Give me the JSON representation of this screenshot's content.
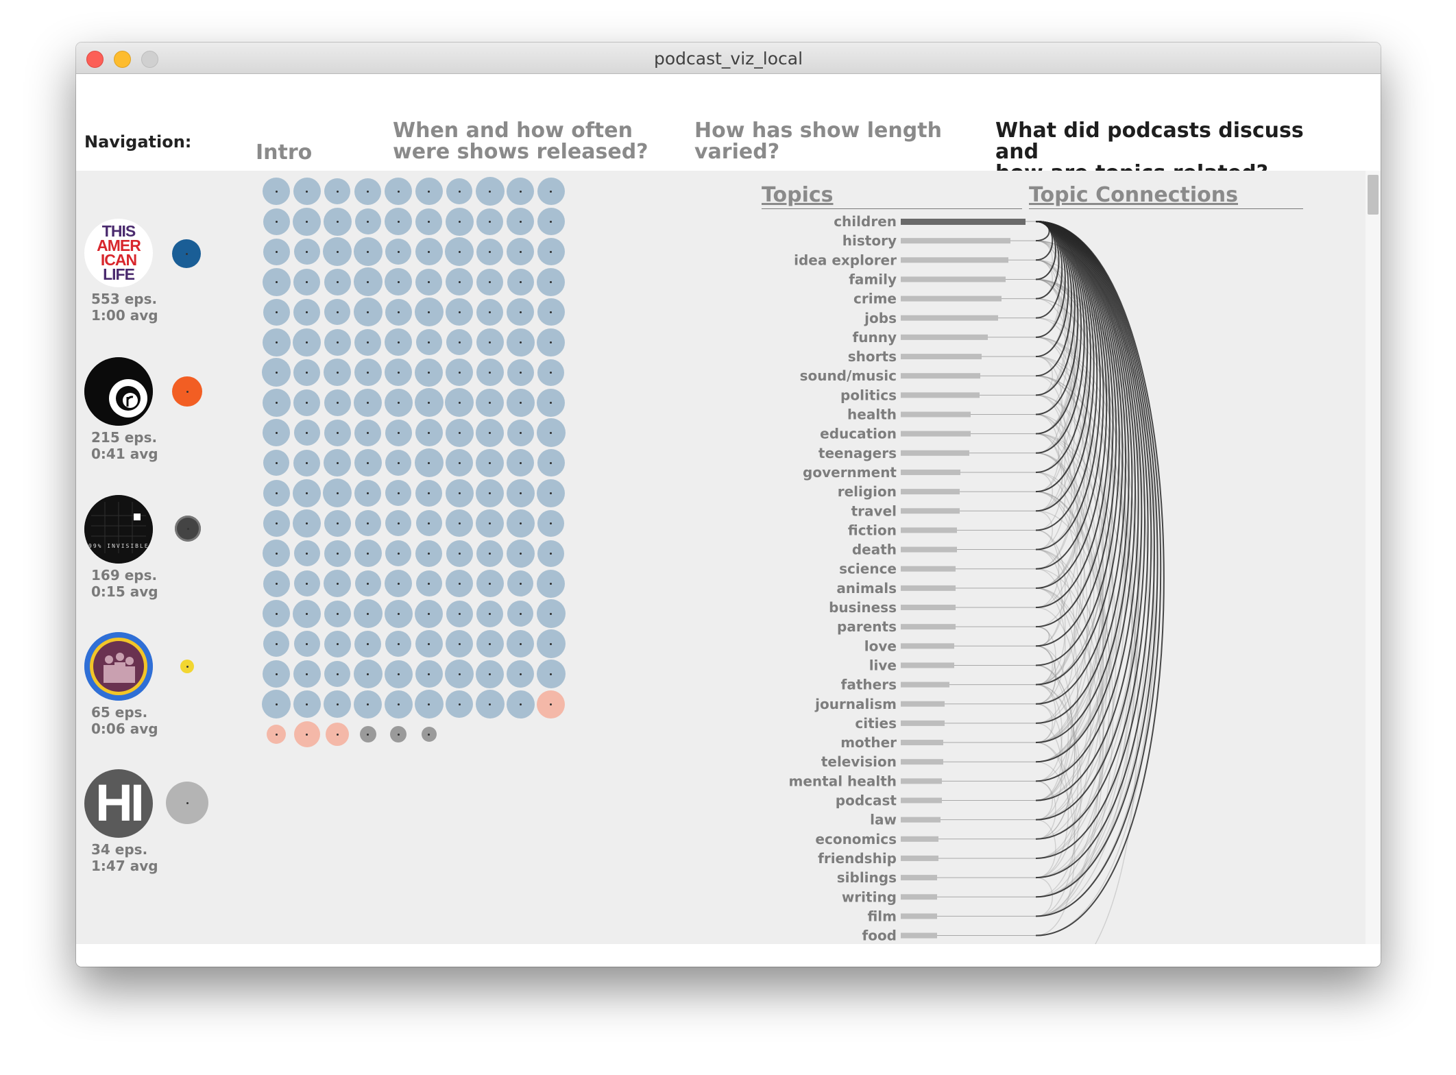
{
  "window": {
    "title": "podcast_viz_local"
  },
  "nav": {
    "label": "Navigation:",
    "items": [
      {
        "lines": [
          "Intro"
        ]
      },
      {
        "lines": [
          "When and how often",
          "were shows released?"
        ]
      },
      {
        "lines": [
          "How has show length",
          "varied?"
        ]
      },
      {
        "lines": [
          "What did podcasts discuss and",
          "how are topics related?"
        ],
        "active": true
      }
    ]
  },
  "podcasts": [
    {
      "logo": "this-american-life-logo",
      "logo_text": [
        "THIS",
        "AMER",
        "ICAN",
        "LIFE"
      ],
      "color": "#1a5e96",
      "eps": "553 eps.",
      "avg": "1:00 avg"
    },
    {
      "logo": "radiolab-logo",
      "color": "#f25e23",
      "eps": "215 eps.",
      "avg": "0:41 avg"
    },
    {
      "logo": "99-percent-invisible-logo",
      "logo_text": [
        "99% INVISIBLE"
      ],
      "color": "#444444",
      "eps": "169 eps.",
      "avg": "0:15 avg"
    },
    {
      "logo": "crowd-photo-logo",
      "color": "#f2d631",
      "eps": "65 eps.",
      "avg": "0:06 avg"
    },
    {
      "logo": "hidden-brain-logo",
      "logo_text": [
        "HI"
      ],
      "color": "#b4b4b4",
      "eps": "34 eps.",
      "avg": "1:47 avg"
    }
  ],
  "episode_grid": {
    "color_main": "#a8bfd1",
    "color_accent": "#f4b8a8",
    "color_gray": "#9a9a9a"
  },
  "topics_panel": {
    "topics_title": "Topics",
    "connections_title": "Topic Connections",
    "highlight": "children",
    "bar_color": "#bdbdbd",
    "highlight_color": "#6a6a6a",
    "topics": [
      {
        "name": "children",
        "value": 1.0
      },
      {
        "name": "history",
        "value": 0.88
      },
      {
        "name": "idea explorer",
        "value": 0.86
      },
      {
        "name": "family",
        "value": 0.84
      },
      {
        "name": "crime",
        "value": 0.81
      },
      {
        "name": "jobs",
        "value": 0.78
      },
      {
        "name": "funny",
        "value": 0.7
      },
      {
        "name": "shorts",
        "value": 0.65
      },
      {
        "name": "sound/music",
        "value": 0.64
      },
      {
        "name": "politics",
        "value": 0.63
      },
      {
        "name": "health",
        "value": 0.56
      },
      {
        "name": "education",
        "value": 0.56
      },
      {
        "name": "teenagers",
        "value": 0.55
      },
      {
        "name": "government",
        "value": 0.48
      },
      {
        "name": "religion",
        "value": 0.47
      },
      {
        "name": "travel",
        "value": 0.47
      },
      {
        "name": "fiction",
        "value": 0.45
      },
      {
        "name": "death",
        "value": 0.45
      },
      {
        "name": "science",
        "value": 0.44
      },
      {
        "name": "animals",
        "value": 0.44
      },
      {
        "name": "business",
        "value": 0.44
      },
      {
        "name": "parents",
        "value": 0.44
      },
      {
        "name": "love",
        "value": 0.43
      },
      {
        "name": "live",
        "value": 0.43
      },
      {
        "name": "fathers",
        "value": 0.39
      },
      {
        "name": "journalism",
        "value": 0.35
      },
      {
        "name": "cities",
        "value": 0.35
      },
      {
        "name": "mother",
        "value": 0.34
      },
      {
        "name": "television",
        "value": 0.34
      },
      {
        "name": "mental health",
        "value": 0.33
      },
      {
        "name": "podcast",
        "value": 0.33
      },
      {
        "name": "law",
        "value": 0.32
      },
      {
        "name": "economics",
        "value": 0.3
      },
      {
        "name": "friendship",
        "value": 0.3
      },
      {
        "name": "siblings",
        "value": 0.29
      },
      {
        "name": "writing",
        "value": 0.29
      },
      {
        "name": "film",
        "value": 0.29
      },
      {
        "name": "food",
        "value": 0.29
      }
    ]
  }
}
